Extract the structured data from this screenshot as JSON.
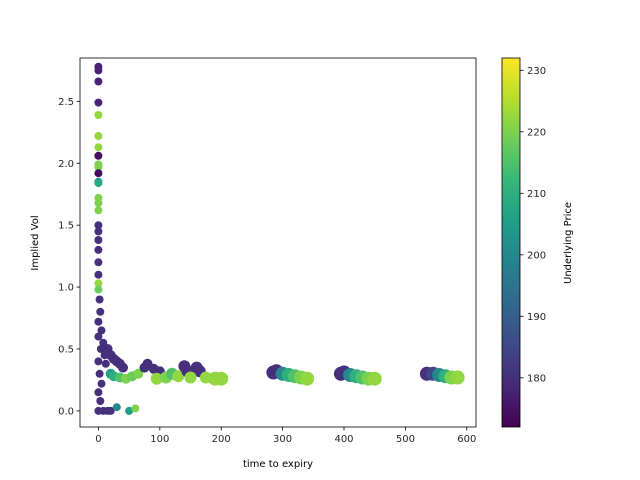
{
  "chart_data": {
    "type": "scatter",
    "xlabel": "time to expiry",
    "ylabel": "Implied Vol",
    "xlim": [
      -30,
      615
    ],
    "ylim": [
      -0.13,
      2.85
    ],
    "xticks": [
      0,
      100,
      200,
      300,
      400,
      500,
      600
    ],
    "yticks": [
      0.0,
      0.5,
      1.0,
      1.5,
      2.0,
      2.5
    ],
    "colorbar": {
      "label": "Underlying Price",
      "range": [
        172,
        232
      ],
      "ticks": [
        180,
        190,
        200,
        210,
        220,
        230
      ],
      "colormap": "viridis"
    },
    "color_stops": [
      "#440154",
      "#482878",
      "#3e4989",
      "#31688e",
      "#26828e",
      "#1f9e89",
      "#35b779",
      "#6ece58",
      "#b5de2b",
      "#fde725"
    ],
    "series": [
      {
        "description_values": "x=time to expiry, y=implied vol, c=underlying price, s=marker size",
        "points": [
          [
            0,
            2.78,
            178,
            4
          ],
          [
            0,
            2.75,
            178,
            4
          ],
          [
            0,
            2.66,
            178,
            4
          ],
          [
            0,
            2.49,
            178,
            4
          ],
          [
            0,
            2.39,
            222,
            4
          ],
          [
            0,
            2.22,
            222,
            4
          ],
          [
            0,
            2.13,
            222,
            4
          ],
          [
            0,
            2.06,
            174,
            4
          ],
          [
            0,
            1.99,
            220,
            4
          ],
          [
            0,
            1.97,
            220,
            4
          ],
          [
            0,
            1.92,
            174,
            4
          ],
          [
            0,
            1.85,
            200,
            4
          ],
          [
            0,
            1.84,
            208,
            4
          ],
          [
            0,
            1.72,
            220,
            4
          ],
          [
            0,
            1.68,
            220,
            4
          ],
          [
            0,
            1.62,
            220,
            4
          ],
          [
            0,
            1.5,
            180,
            4
          ],
          [
            0,
            1.45,
            180,
            4
          ],
          [
            0,
            1.38,
            180,
            4
          ],
          [
            0,
            1.3,
            180,
            4
          ],
          [
            0,
            1.2,
            180,
            4
          ],
          [
            0,
            1.1,
            180,
            4
          ],
          [
            0,
            1.03,
            222,
            4
          ],
          [
            0,
            0.98,
            218,
            4
          ],
          [
            2,
            0.9,
            180,
            4
          ],
          [
            3,
            0.8,
            180,
            4
          ],
          [
            0,
            0.72,
            180,
            4
          ],
          [
            5,
            0.65,
            180,
            4
          ],
          [
            0,
            0.6,
            180,
            4
          ],
          [
            8,
            0.55,
            180,
            4
          ],
          [
            4,
            0.5,
            180,
            4
          ],
          [
            10,
            0.45,
            180,
            4
          ],
          [
            0,
            0.4,
            180,
            4
          ],
          [
            12,
            0.38,
            180,
            4
          ],
          [
            2,
            0.3,
            180,
            4
          ],
          [
            5,
            0.22,
            180,
            4
          ],
          [
            0,
            0.15,
            180,
            4
          ],
          [
            3,
            0.08,
            180,
            4
          ],
          [
            0,
            0.0,
            180,
            4
          ],
          [
            8,
            0.0,
            180,
            4
          ],
          [
            15,
            0.0,
            180,
            4
          ],
          [
            20,
            0.0,
            180,
            4
          ],
          [
            30,
            0.03,
            200,
            4
          ],
          [
            50,
            0.0,
            205,
            4
          ],
          [
            60,
            0.02,
            220,
            4
          ],
          [
            15,
            0.5,
            180,
            5
          ],
          [
            20,
            0.45,
            180,
            5
          ],
          [
            25,
            0.42,
            180,
            5
          ],
          [
            30,
            0.4,
            180,
            5
          ],
          [
            35,
            0.38,
            180,
            5
          ],
          [
            40,
            0.35,
            180,
            5
          ],
          [
            20,
            0.3,
            205,
            5
          ],
          [
            25,
            0.28,
            210,
            5
          ],
          [
            35,
            0.27,
            215,
            5
          ],
          [
            45,
            0.26,
            220,
            5
          ],
          [
            55,
            0.28,
            218,
            5
          ],
          [
            65,
            0.3,
            220,
            5
          ],
          [
            75,
            0.35,
            180,
            5
          ],
          [
            80,
            0.38,
            180,
            5
          ],
          [
            90,
            0.34,
            180,
            5
          ],
          [
            100,
            0.32,
            180,
            5
          ],
          [
            95,
            0.26,
            222,
            6
          ],
          [
            110,
            0.27,
            220,
            6
          ],
          [
            120,
            0.3,
            215,
            6
          ],
          [
            130,
            0.28,
            222,
            6
          ],
          [
            140,
            0.36,
            180,
            6
          ],
          [
            145,
            0.32,
            180,
            6
          ],
          [
            160,
            0.35,
            180,
            6
          ],
          [
            165,
            0.32,
            180,
            6
          ],
          [
            150,
            0.27,
            222,
            6
          ],
          [
            175,
            0.27,
            222,
            6
          ],
          [
            190,
            0.26,
            222,
            7
          ],
          [
            200,
            0.26,
            222,
            7
          ],
          [
            285,
            0.31,
            180,
            7
          ],
          [
            290,
            0.32,
            180,
            7
          ],
          [
            300,
            0.3,
            200,
            7
          ],
          [
            310,
            0.29,
            210,
            7
          ],
          [
            320,
            0.28,
            215,
            7
          ],
          [
            330,
            0.27,
            220,
            7
          ],
          [
            340,
            0.26,
            222,
            7
          ],
          [
            395,
            0.3,
            180,
            7
          ],
          [
            400,
            0.31,
            180,
            7
          ],
          [
            410,
            0.29,
            200,
            7
          ],
          [
            420,
            0.28,
            210,
            7
          ],
          [
            430,
            0.27,
            215,
            7
          ],
          [
            440,
            0.26,
            220,
            7
          ],
          [
            450,
            0.26,
            222,
            7
          ],
          [
            535,
            0.3,
            180,
            7
          ],
          [
            545,
            0.3,
            185,
            7
          ],
          [
            555,
            0.29,
            200,
            7
          ],
          [
            565,
            0.28,
            210,
            7
          ],
          [
            575,
            0.27,
            220,
            7
          ],
          [
            585,
            0.27,
            222,
            7
          ]
        ]
      }
    ]
  }
}
